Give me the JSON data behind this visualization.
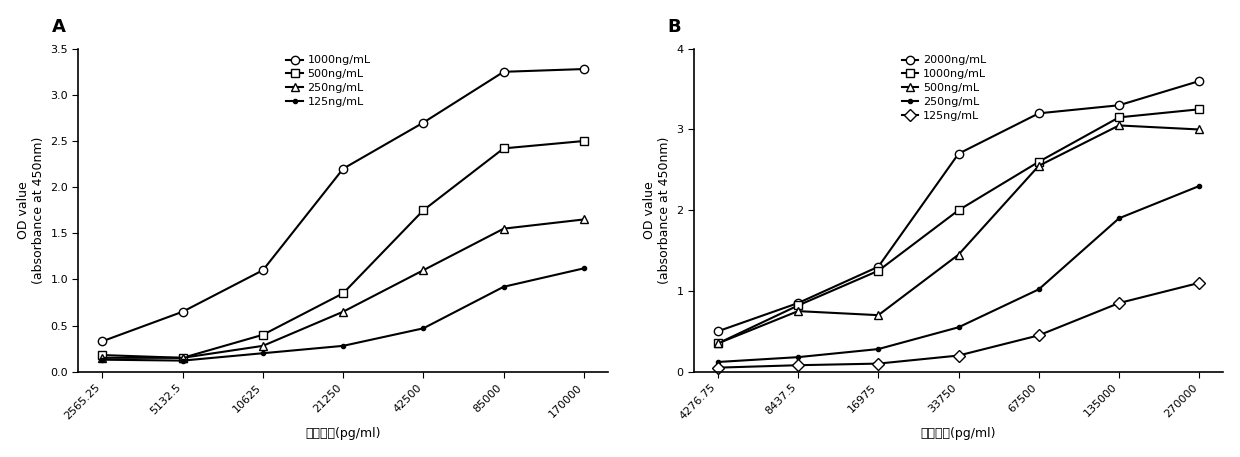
{
  "panel_A": {
    "label": "A",
    "x_ticks": [
      "2565.25",
      "5132.5",
      "10625",
      "21250",
      "42500",
      "85000",
      "170000"
    ],
    "x_values": [
      2565.25,
      5132.5,
      10625,
      21250,
      42500,
      85000,
      170000
    ],
    "xlabel": "抗体浓度(pg/ml)",
    "ylabel": "OD value\n(absorbance at 450nm)",
    "ylim": [
      0,
      3.5
    ],
    "yticks": [
      0.0,
      0.5,
      1.0,
      1.5,
      2.0,
      2.5,
      3.0,
      3.5
    ],
    "series": [
      {
        "label": "1000ng/mL",
        "marker": "o",
        "mfc": "white",
        "mec": "black",
        "values": [
          0.33,
          0.65,
          1.1,
          2.2,
          2.7,
          3.25,
          3.28
        ]
      },
      {
        "label": "500ng/mL",
        "marker": "s",
        "mfc": "white",
        "mec": "black",
        "values": [
          0.18,
          0.15,
          0.4,
          0.85,
          1.75,
          2.42,
          2.5
        ]
      },
      {
        "label": "250ng/mL",
        "marker": "^",
        "mfc": "white",
        "mec": "black",
        "values": [
          0.15,
          0.15,
          0.28,
          0.65,
          1.1,
          1.55,
          1.65
        ]
      },
      {
        "label": "125ng/mL",
        "marker": "o",
        "mfc": "black",
        "mec": "black",
        "markersize": 3,
        "values": [
          0.13,
          0.12,
          0.2,
          0.28,
          0.47,
          0.92,
          1.12
        ]
      }
    ]
  },
  "panel_B": {
    "label": "B",
    "x_ticks": [
      "4276.75",
      "8437.5",
      "16975",
      "33750",
      "67500",
      "135000",
      "270000"
    ],
    "x_values": [
      4276.75,
      8437.5,
      16975,
      33750,
      67500,
      135000,
      270000
    ],
    "xlabel": "抗体浓度(pg/ml)",
    "ylabel": "OD value\n(absorbance at 450nm)",
    "ylim": [
      0,
      4
    ],
    "yticks": [
      0,
      1,
      2,
      3,
      4
    ],
    "series": [
      {
        "label": "2000ng/mL",
        "marker": "o",
        "mfc": "white",
        "mec": "black",
        "values": [
          0.5,
          0.85,
          1.3,
          2.7,
          3.2,
          3.3,
          3.6
        ]
      },
      {
        "label": "1000ng/mL",
        "marker": "s",
        "mfc": "white",
        "mec": "black",
        "values": [
          0.35,
          0.82,
          1.25,
          2.0,
          2.6,
          3.15,
          3.25
        ]
      },
      {
        "label": "500ng/mL",
        "marker": "^",
        "mfc": "white",
        "mec": "black",
        "values": [
          0.35,
          0.75,
          0.7,
          1.45,
          2.55,
          3.05,
          3.0
        ]
      },
      {
        "label": "250ng/mL",
        "marker": "o",
        "mfc": "black",
        "mec": "black",
        "markersize": 3,
        "values": [
          0.12,
          0.18,
          0.28,
          0.55,
          1.02,
          1.9,
          2.3
        ]
      },
      {
        "label": "125ng/mL",
        "marker": "D",
        "mfc": "white",
        "mec": "black",
        "values": [
          0.05,
          0.08,
          0.1,
          0.2,
          0.45,
          0.85,
          1.1
        ]
      }
    ]
  },
  "line_color": "#000000",
  "background_color": "#ffffff",
  "fontsize_label": 9,
  "fontsize_tick": 8,
  "fontsize_panel": 13,
  "default_markersize": 6,
  "linewidth": 1.5
}
